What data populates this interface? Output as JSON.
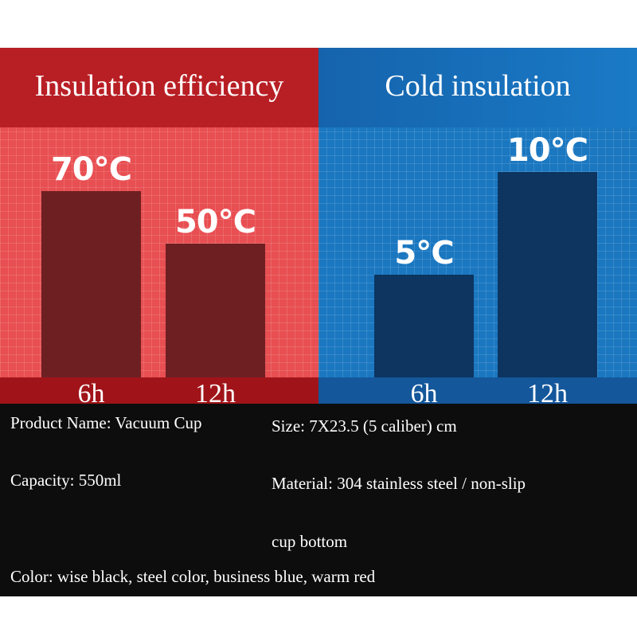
{
  "chart_data": [
    {
      "type": "bar",
      "title": "Insulation efficiency",
      "categories": [
        "6h",
        "12h"
      ],
      "values": [
        70,
        50
      ],
      "value_labels": [
        "70℃",
        "50℃"
      ],
      "unit": "℃",
      "ylim": [
        0,
        100
      ],
      "colors": {
        "header": "#b81f25",
        "background": "#e84f52",
        "bar": "#6e1f22"
      }
    },
    {
      "type": "bar",
      "title": "Cold insulation",
      "categories": [
        "6h",
        "12h"
      ],
      "values": [
        5,
        10
      ],
      "value_labels": [
        "5℃",
        "10℃"
      ],
      "unit": "℃",
      "ylim": [
        0,
        13
      ],
      "colors": {
        "header": "#1563ac",
        "background": "#1a77c0",
        "bar": "#0d3560"
      }
    }
  ],
  "specs": {
    "product_name": "Product Name: Vacuum Cup",
    "size": "Size: 7X23.5 (5 caliber) cm",
    "capacity": "Capacity: 550ml",
    "material_line1": "Material: 304 stainless steel / non-slip",
    "material_line2": "cup bottom",
    "color": "Color: wise black, steel color, business blue, warm red"
  }
}
